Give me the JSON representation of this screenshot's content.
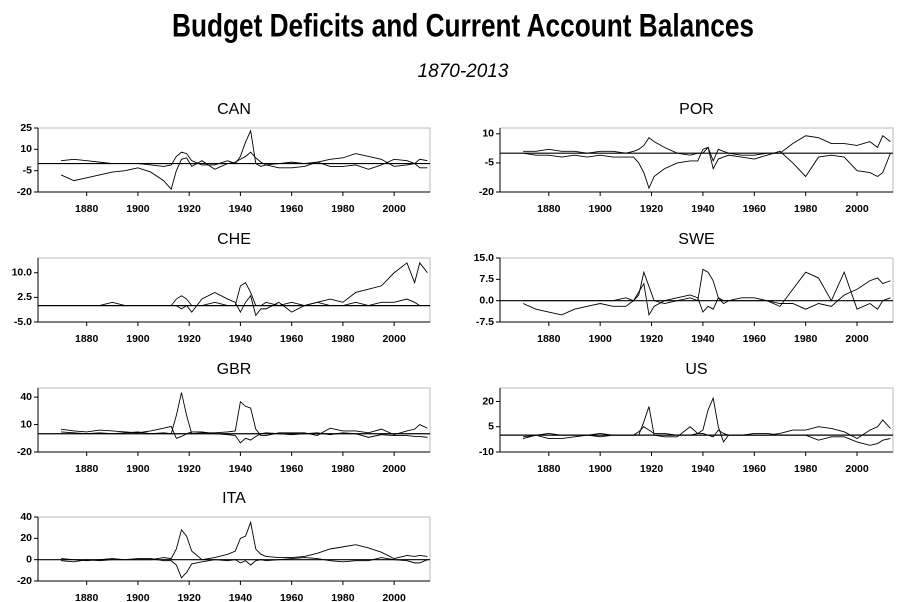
{
  "title": "Budget Deficits and Current Account Balances",
  "subtitle": "1870-2013",
  "chart_data": [
    {
      "type": "line",
      "title": "CAN",
      "x": [
        1870,
        1875,
        1880,
        1885,
        1890,
        1895,
        1900,
        1905,
        1910,
        1913,
        1915,
        1917,
        1919,
        1921,
        1925,
        1930,
        1935,
        1938,
        1940,
        1942,
        1944,
        1946,
        1948,
        1950,
        1955,
        1960,
        1965,
        1970,
        1975,
        1980,
        1985,
        1990,
        1995,
        2000,
        2005,
        2008,
        2010,
        2013
      ],
      "series": [
        {
          "color": "#000000",
          "values": [
            2,
            3,
            2,
            1,
            0,
            0,
            0,
            -1,
            -2,
            -1,
            5,
            8,
            7,
            2,
            -1,
            -1,
            2,
            0,
            5,
            15,
            23,
            0,
            -2,
            -1,
            0,
            1,
            0,
            1,
            3,
            4,
            7,
            5,
            3,
            -2,
            -1,
            0,
            3,
            2
          ]
        },
        {
          "color": "#000000",
          "values": [
            -8,
            -12,
            -10,
            -8,
            -6,
            -5,
            -3,
            -6,
            -12,
            -18,
            -5,
            3,
            4,
            -2,
            2,
            -4,
            0,
            1,
            3,
            5,
            8,
            4,
            1,
            -1,
            -3,
            -3,
            -2,
            1,
            -2,
            -2,
            -1,
            -4,
            -1,
            3,
            2,
            0,
            -3,
            -3
          ]
        }
      ],
      "xlim": [
        1861,
        2014
      ],
      "xticks": [
        1880,
        1900,
        1920,
        1940,
        1960,
        1980,
        2000
      ],
      "ylim": [
        -20,
        25
      ],
      "yticks": [
        25,
        10,
        -5,
        -20
      ],
      "hline": 0
    },
    {
      "type": "line",
      "title": "POR",
      "x": [
        1870,
        1875,
        1880,
        1885,
        1890,
        1895,
        1900,
        1905,
        1910,
        1913,
        1915,
        1917,
        1919,
        1921,
        1925,
        1930,
        1935,
        1938,
        1940,
        1942,
        1944,
        1946,
        1948,
        1950,
        1955,
        1960,
        1965,
        1970,
        1975,
        1980,
        1985,
        1990,
        1995,
        2000,
        2005,
        2008,
        2010,
        2013
      ],
      "series": [
        {
          "color": "#000000",
          "values": [
            1,
            1,
            2,
            1,
            1,
            0,
            1,
            1,
            0,
            1,
            2,
            4,
            8,
            6,
            3,
            0,
            -1,
            0,
            0,
            3,
            -4,
            2,
            1,
            0,
            -1,
            -1,
            0,
            0,
            5,
            9,
            8,
            5,
            5,
            4,
            6,
            3,
            9,
            6
          ]
        },
        {
          "color": "#000000",
          "values": [
            0,
            -1,
            -1,
            -2,
            -1,
            -2,
            -1,
            -2,
            -2,
            -2,
            -5,
            -10,
            -18,
            -12,
            -8,
            -5,
            -4,
            -4,
            2,
            3,
            -8,
            -3,
            -2,
            -1,
            -2,
            -3,
            -1,
            1,
            -5,
            -12,
            -2,
            -1,
            -2,
            -9,
            -10,
            -12,
            -10,
            0
          ]
        }
      ],
      "xlim": [
        1861,
        2014
      ],
      "xticks": [
        1880,
        1900,
        1920,
        1940,
        1960,
        1980,
        2000
      ],
      "ylim": [
        -20,
        13
      ],
      "yticks": [
        10,
        -5,
        -20
      ],
      "hline": 0
    },
    {
      "type": "line",
      "title": "CHE",
      "x": [
        1870,
        1875,
        1880,
        1885,
        1890,
        1895,
        1900,
        1905,
        1910,
        1913,
        1915,
        1917,
        1919,
        1921,
        1925,
        1930,
        1935,
        1938,
        1940,
        1942,
        1944,
        1946,
        1948,
        1950,
        1955,
        1960,
        1965,
        1970,
        1975,
        1980,
        1985,
        1990,
        1995,
        2000,
        2005,
        2008,
        2010,
        2013
      ],
      "series": [
        {
          "color": "#000000",
          "values": [
            0,
            0,
            0,
            0,
            1,
            0,
            0,
            0,
            0,
            0,
            2,
            3,
            2,
            0,
            0,
            1,
            0,
            0,
            6,
            7,
            4,
            0,
            0,
            1,
            0,
            1,
            0,
            1,
            0,
            0,
            1,
            0,
            1,
            1,
            2,
            1,
            0,
            0
          ]
        },
        {
          "color": "#000000",
          "values": [
            0,
            0,
            0,
            0,
            0,
            0,
            0,
            0,
            0,
            0,
            0,
            -1,
            0,
            -2,
            2,
            4,
            2,
            1,
            -2,
            1,
            3,
            -3,
            -1,
            -1,
            1,
            -2,
            0,
            1,
            2,
            1,
            4,
            5,
            6,
            10,
            13,
            7,
            13,
            10
          ]
        }
      ],
      "xlim": [
        1861,
        2014
      ],
      "xticks": [
        1880,
        1900,
        1920,
        1940,
        1960,
        1980,
        2000
      ],
      "ylim": [
        -5,
        14.5
      ],
      "yticks": [
        {
          "value": 10,
          "label": "10.0"
        },
        2.5,
        {
          "value": -5,
          "label": "-5.0"
        }
      ],
      "hline": 0
    },
    {
      "type": "line",
      "title": "SWE",
      "x": [
        1870,
        1875,
        1880,
        1885,
        1890,
        1895,
        1900,
        1905,
        1910,
        1913,
        1915,
        1917,
        1919,
        1921,
        1925,
        1930,
        1935,
        1938,
        1940,
        1942,
        1944,
        1946,
        1948,
        1950,
        1955,
        1960,
        1965,
        1970,
        1975,
        1980,
        1985,
        1990,
        1995,
        2000,
        2005,
        2008,
        2010,
        2013
      ],
      "series": [
        {
          "color": "#000000",
          "values": [
            0,
            0,
            0,
            0,
            0,
            0,
            0,
            0,
            1,
            0,
            2,
            10,
            5,
            0,
            -1,
            0,
            1,
            0,
            11,
            10,
            7,
            1,
            0,
            0,
            1,
            1,
            0,
            -2,
            4,
            10,
            8,
            0,
            10,
            -3,
            -1,
            -3,
            0,
            1
          ]
        },
        {
          "color": "#000000",
          "values": [
            -1,
            -3,
            -4,
            -5,
            -3,
            -2,
            -1,
            -2,
            -2,
            0,
            3,
            6,
            -5,
            -2,
            0,
            1,
            2,
            1,
            -4,
            -2,
            -3,
            1,
            -1,
            0,
            0,
            0,
            0,
            -1,
            -1,
            -3,
            -1,
            -2,
            2,
            4,
            7,
            8,
            6,
            7
          ]
        }
      ],
      "xlim": [
        1861,
        2014
      ],
      "xticks": [
        1880,
        1900,
        1920,
        1940,
        1960,
        1980,
        2000
      ],
      "ylim": [
        -7.5,
        15
      ],
      "yticks": [
        {
          "value": 15,
          "label": "15.0"
        },
        7.5,
        {
          "value": 0,
          "label": "0.0"
        },
        -7.5
      ],
      "hline": 0
    },
    {
      "type": "line",
      "title": "GBR",
      "x": [
        1870,
        1875,
        1880,
        1885,
        1890,
        1895,
        1900,
        1905,
        1910,
        1913,
        1915,
        1917,
        1919,
        1921,
        1925,
        1930,
        1935,
        1938,
        1940,
        1942,
        1944,
        1946,
        1948,
        1950,
        1955,
        1960,
        1965,
        1970,
        1975,
        1980,
        1985,
        1990,
        1995,
        2000,
        2005,
        2008,
        2010,
        2013
      ],
      "series": [
        {
          "color": "#000000",
          "values": [
            2,
            1,
            0,
            1,
            0,
            1,
            2,
            0,
            1,
            0,
            20,
            45,
            20,
            0,
            1,
            1,
            2,
            3,
            35,
            30,
            28,
            5,
            -2,
            -2,
            1,
            1,
            1,
            -2,
            6,
            3,
            3,
            1,
            5,
            -1,
            3,
            5,
            10,
            6
          ]
        },
        {
          "color": "#000000",
          "values": [
            5,
            3,
            2,
            4,
            3,
            2,
            1,
            3,
            6,
            8,
            -5,
            -3,
            0,
            2,
            2,
            0,
            -1,
            -2,
            -10,
            -5,
            -7,
            -3,
            0,
            1,
            0,
            -1,
            0,
            1,
            -1,
            1,
            0,
            -4,
            -1,
            -2,
            -2,
            -3,
            -3,
            -4
          ]
        }
      ],
      "xlim": [
        1861,
        2014
      ],
      "xticks": [
        1880,
        1900,
        1920,
        1940,
        1960,
        1980,
        2000
      ],
      "ylim": [
        -20,
        50
      ],
      "yticks": [
        40,
        10,
        -20
      ],
      "hline": 0
    },
    {
      "type": "line",
      "title": "US",
      "x": [
        1870,
        1875,
        1880,
        1885,
        1890,
        1895,
        1900,
        1905,
        1910,
        1913,
        1915,
        1917,
        1919,
        1921,
        1925,
        1930,
        1935,
        1938,
        1940,
        1942,
        1944,
        1946,
        1948,
        1950,
        1955,
        1960,
        1965,
        1970,
        1975,
        1980,
        1985,
        1990,
        1995,
        2000,
        2005,
        2008,
        2010,
        2013
      ],
      "series": [
        {
          "color": "#000000",
          "values": [
            -1,
            0,
            -2,
            -2,
            -1,
            0,
            -1,
            0,
            0,
            0,
            0,
            8,
            17,
            0,
            -1,
            -1,
            5,
            1,
            3,
            15,
            22,
            5,
            -4,
            0,
            0,
            0,
            0,
            1,
            3,
            3,
            5,
            4,
            2,
            -2,
            3,
            5,
            9,
            4
          ]
        },
        {
          "color": "#000000",
          "values": [
            -2,
            0,
            1,
            0,
            0,
            0,
            1,
            0,
            0,
            0,
            2,
            5,
            3,
            1,
            1,
            0,
            0,
            1,
            1,
            0,
            -1,
            3,
            1,
            0,
            0,
            1,
            1,
            0,
            0,
            0,
            -3,
            -1,
            -1,
            -4,
            -6,
            -5,
            -3,
            -2
          ]
        }
      ],
      "xlim": [
        1861,
        2014
      ],
      "xticks": [
        1880,
        1900,
        1920,
        1940,
        1960,
        1980,
        2000
      ],
      "ylim": [
        -10,
        28
      ],
      "yticks": [
        20,
        5,
        -10
      ],
      "hline": 0
    },
    {
      "type": "line",
      "title": "ITA",
      "x": [
        1870,
        1875,
        1880,
        1885,
        1890,
        1895,
        1900,
        1905,
        1910,
        1913,
        1915,
        1917,
        1919,
        1921,
        1925,
        1930,
        1935,
        1938,
        1940,
        1942,
        1944,
        1946,
        1948,
        1950,
        1955,
        1960,
        1965,
        1970,
        1975,
        1980,
        1985,
        1990,
        1995,
        2000,
        2005,
        2008,
        2010,
        2013
      ],
      "series": [
        {
          "color": "#000000",
          "values": [
            1,
            0,
            -1,
            0,
            1,
            0,
            0,
            0,
            2,
            1,
            10,
            28,
            22,
            8,
            0,
            2,
            5,
            8,
            20,
            22,
            35,
            10,
            5,
            3,
            2,
            2,
            3,
            6,
            10,
            12,
            14,
            11,
            7,
            1,
            4,
            3,
            4,
            3
          ]
        },
        {
          "color": "#000000",
          "values": [
            -1,
            -2,
            0,
            -1,
            0,
            0,
            1,
            1,
            -1,
            -1,
            -5,
            -17,
            -12,
            -4,
            -2,
            0,
            -1,
            0,
            -3,
            -1,
            -5,
            -1,
            0,
            -1,
            0,
            1,
            2,
            1,
            -1,
            -2,
            -1,
            -1,
            2,
            0,
            -1,
            -3,
            -3,
            0
          ]
        }
      ],
      "xlim": [
        1861,
        2014
      ],
      "xticks": [
        1880,
        1900,
        1920,
        1940,
        1960,
        1980,
        2000
      ],
      "ylim": [
        -20,
        40
      ],
      "yticks": [
        40,
        20,
        0,
        -20
      ],
      "hline": 0
    }
  ]
}
